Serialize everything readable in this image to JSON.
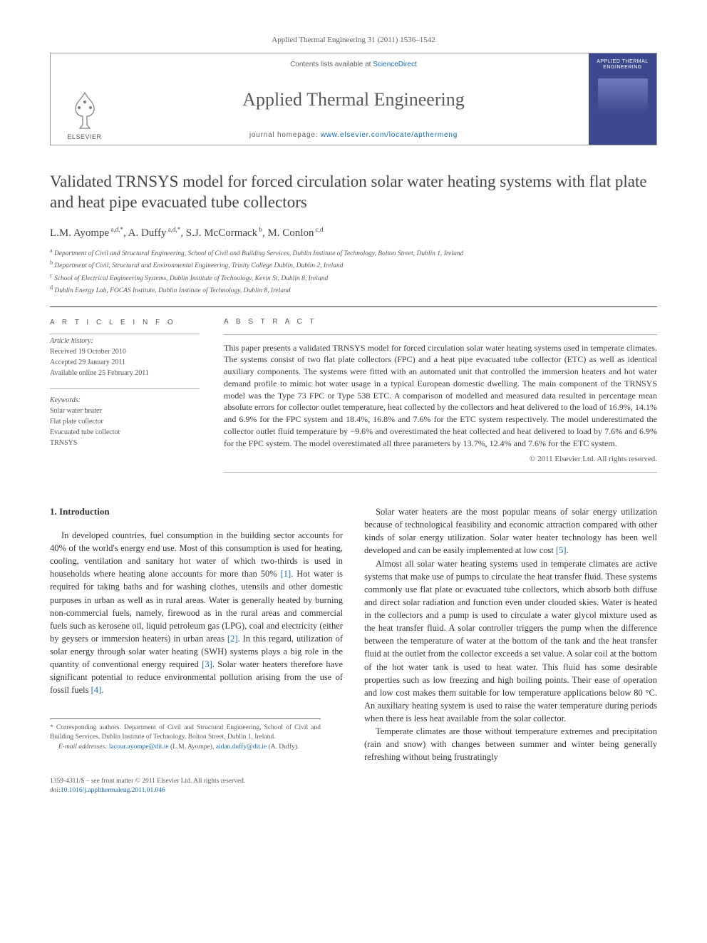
{
  "header": {
    "citation": "Applied Thermal Engineering 31 (2011) 1536–1542"
  },
  "banner": {
    "contents_prefix": "Contents lists available at ",
    "contents_link": "ScienceDirect",
    "journal_name": "Applied Thermal Engineering",
    "homepage_prefix": "journal homepage: ",
    "homepage_url": "www.elsevier.com/locate/apthermeng",
    "publisher": "ELSEVIER",
    "cover_text": "APPLIED THERMAL ENGINEERING"
  },
  "article": {
    "title": "Validated TRNSYS model for forced circulation solar water heating systems with flat plate and heat pipe evacuated tube collectors",
    "authors_html": "L.M. Ayompe<sup> a,d,*</sup>, A. Duffy<sup> a,d,*</sup>, S.J. McCormack<sup> b</sup>, M. Conlon<sup> c,d</sup>",
    "affiliations": [
      {
        "sup": "a",
        "text": "Department of Civil and Structural Engineering, School of Civil and Building Services, Dublin Institute of Technology, Bolton Street, Dublin 1, Ireland"
      },
      {
        "sup": "b",
        "text": "Department of Civil, Structural and Environmental Engineering, Trinity College Dublin, Dublin 2, Ireland"
      },
      {
        "sup": "c",
        "text": "School of Electrical Engineering Systems, Dublin Institute of Technology, Kevin St, Dublin 8, Ireland"
      },
      {
        "sup": "d",
        "text": "Dublin Energy Lab, FOCAS Institute, Dublin Institute of Technology, Dublin 8, Ireland"
      }
    ]
  },
  "info": {
    "heading": "A R T I C L E   I N F O",
    "history_label": "Article history:",
    "history": [
      "Received 19 October 2010",
      "Accepted 29 January 2011",
      "Available online 25 February 2011"
    ],
    "keywords_label": "Keywords:",
    "keywords": [
      "Solar water heater",
      "Flat plate collector",
      "Evacuated tube collector",
      "TRNSYS"
    ]
  },
  "abstract": {
    "heading": "A B S T R A C T",
    "text": "This paper presents a validated TRNSYS model for forced circulation solar water heating systems used in temperate climates. The systems consist of two flat plate collectors (FPC) and a heat pipe evacuated tube collector (ETC) as well as identical auxiliary components. The systems were fitted with an automated unit that controlled the immersion heaters and hot water demand profile to mimic hot water usage in a typical European domestic dwelling. The main component of the TRNSYS model was the Type 73 FPC or Type 538 ETC. A comparison of modelled and measured data resulted in percentage mean absolute errors for collector outlet temperature, heat collected by the collectors and heat delivered to the load of 16.9%, 14.1% and 6.9% for the FPC system and 18.4%, 16.8% and 7.6% for the ETC system respectively. The model underestimated the collector outlet fluid temperature by −9.6% and overestimated the heat collected and heat delivered to load by 7.6% and 6.9% for the FPC system. The model overestimated all three parameters by 13.7%, 12.4% and 7.6% for the ETC system.",
    "copyright": "© 2011 Elsevier Ltd. All rights reserved."
  },
  "body": {
    "section_heading": "1. Introduction",
    "col1_p1": "In developed countries, fuel consumption in the building sector accounts for 40% of the world's energy end use. Most of this consumption is used for heating, cooling, ventilation and sanitary hot water of which two-thirds is used in households where heating alone accounts for more than 50% [1]. Hot water is required for taking baths and for washing clothes, utensils and other domestic purposes in urban as well as in rural areas. Water is generally heated by burning non-commercial fuels, namely, firewood as in the rural areas and commercial fuels such as kerosene oil, liquid petroleum gas (LPG), coal and electricity (either by geysers or immersion heaters) in urban areas [2]. In this regard, utilization of solar energy through solar water heating (SWH) systems plays a big role in the quantity of conventional energy required [3]. Solar water heaters therefore have significant potential to reduce environmental pollution arising from the use of fossil fuels [4].",
    "col2_p1": "Solar water heaters are the most popular means of solar energy utilization because of technological feasibility and economic attraction compared with other kinds of solar energy utilization. Solar water heater technology has been well developed and can be easily implemented at low cost [5].",
    "col2_p2": "Almost all solar water heating systems used in temperate climates are active systems that make use of pumps to circulate the heat transfer fluid. These systems commonly use flat plate or evacuated tube collectors, which absorb both diffuse and direct solar radiation and function even under clouded skies. Water is heated in the collectors and a pump is used to circulate a water glycol mixture used as the heat transfer fluid. A solar controller triggers the pump when the difference between the temperature of water at the bottom of the tank and the heat transfer fluid at the outlet from the collector exceeds a set value. A solar coil at the bottom of the hot water tank is used to heat water. This fluid has some desirable properties such as low freezing and high boiling points. Their ease of operation and low cost makes them suitable for low temperature applications below 80 °C. An auxiliary heating system is used to raise the water temperature during periods when there is less heat available from the solar collector.",
    "col2_p3": "Temperate climates are those without temperature extremes and precipitation (rain and snow) with changes between summer and winter being generally refreshing without being frustratingly"
  },
  "footnotes": {
    "corr": "* Corresponding authors. Department of Civil and Structural Engineering, School of Civil and Building Services, Dublin Institute of Technology, Bolton Street, Dublin 1, Ireland.",
    "email_label": "E-mail addresses:",
    "email1": "lacour.ayompe@dit.ie",
    "email1_who": " (L.M. Ayompe), ",
    "email2": "aidan.duffy@dit.ie",
    "email2_who": " (A. Duffy)."
  },
  "footer": {
    "front_matter": "1359-4311/$ – see front matter © 2011 Elsevier Ltd. All rights reserved.",
    "doi_label": "doi:",
    "doi": "10.1016/j.applthermaleng.2011.01.046"
  },
  "colors": {
    "link": "#1568b3",
    "text": "#333333",
    "muted": "#606060",
    "banner_border": "#999999",
    "cover_bg": "#3b4a8f"
  }
}
